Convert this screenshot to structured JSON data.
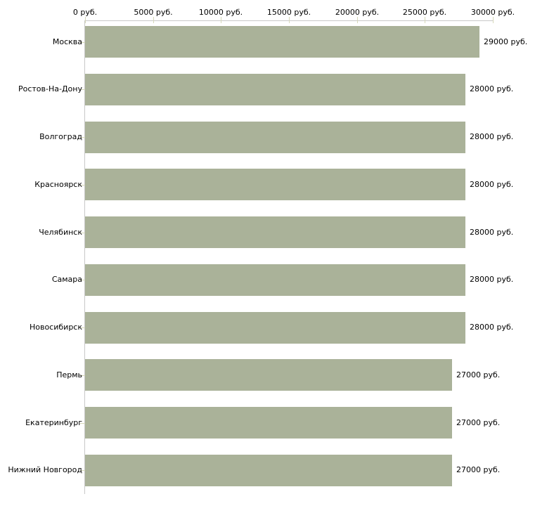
{
  "chart_data": {
    "type": "bar",
    "orientation": "horizontal",
    "title": "",
    "xlabel": "",
    "ylabel": "",
    "unit": "руб.",
    "xlim": [
      0,
      30000
    ],
    "grid": false,
    "legend": false,
    "categories": [
      "Москва",
      "Ростов-На-Дону",
      "Волгоград",
      "Красноярск",
      "Челябинск",
      "Самара",
      "Новосибирск",
      "Пермь",
      "Екатеринбург",
      "Нижний Новгород"
    ],
    "values": [
      29000,
      28000,
      28000,
      28000,
      28000,
      28000,
      28000,
      27000,
      27000,
      27000
    ],
    "value_labels": [
      "29000 руб.",
      "28000 руб.",
      "28000 руб.",
      "28000 руб.",
      "28000 руб.",
      "28000 руб.",
      "28000 руб.",
      "27000 руб.",
      "27000 руб.",
      "27000 руб."
    ],
    "x_ticks": [
      {
        "value": 0,
        "label": "0 руб."
      },
      {
        "value": 5000,
        "label": "5000 руб."
      },
      {
        "value": 10000,
        "label": "10000 руб."
      },
      {
        "value": 15000,
        "label": "15000 руб."
      },
      {
        "value": 20000,
        "label": "20000 руб."
      },
      {
        "value": 25000,
        "label": "25000 руб."
      },
      {
        "value": 30000,
        "label": "30000 руб."
      }
    ]
  },
  "colors": {
    "bar": "#aab299",
    "axis_line": "#c8c8c8",
    "tick_mark": "#d6d8ba",
    "text": "#000000",
    "background": "#ffffff"
  }
}
